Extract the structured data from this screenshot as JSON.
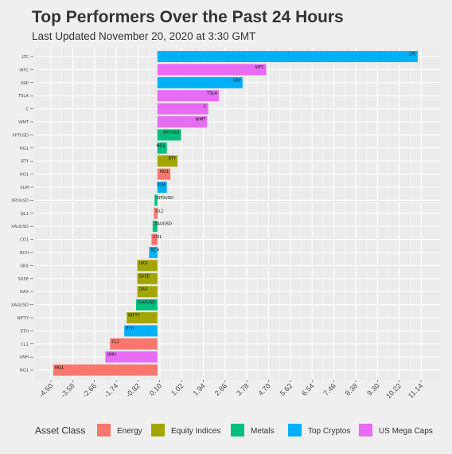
{
  "chart_data": {
    "type": "bar",
    "orientation": "horizontal",
    "title": "Top Performers Over the Past 24 Hours",
    "subtitle": "Last Updated November 20, 2020 at 3:30 GMT",
    "xlabel": "",
    "ylabel": "",
    "xlim": [
      -4.5,
      11.14
    ],
    "grid": true,
    "legend_position": "bottom",
    "x_ticks": [
      "-4.50",
      "-3.58",
      "-2.66",
      "-1.74",
      "-0.82",
      "0.10",
      "1.02",
      "1.94",
      "2.86",
      "3.78",
      "4.70",
      "5.62",
      "6.54",
      "7.46",
      "8.38",
      "9.30",
      "10.22",
      "11.14"
    ],
    "legend": {
      "title": "Asset Class",
      "entries": [
        {
          "name": "Energy",
          "color": "#f8766d"
        },
        {
          "name": "Equity Indices",
          "color": "#a3a500"
        },
        {
          "name": "Metals",
          "color": "#00bf7d"
        },
        {
          "name": "Top Cryptos",
          "color": "#00b0f6"
        },
        {
          "name": "US Mega Caps",
          "color": "#e76bf3"
        }
      ]
    },
    "bars": [
      {
        "label": "LTC",
        "value": 11.0,
        "class": "Top Cryptos"
      },
      {
        "label": "WFC",
        "value": 4.6,
        "class": "US Mega Caps"
      },
      {
        "label": "XRP",
        "value": 3.6,
        "class": "Top Cryptos"
      },
      {
        "label": "TSLA",
        "value": 2.6,
        "class": "US Mega Caps"
      },
      {
        "label": "C",
        "value": 2.15,
        "class": "US Mega Caps"
      },
      {
        "label": "WMT",
        "value": 2.1,
        "class": "US Mega Caps"
      },
      {
        "label": "XPTUSD",
        "value": 1.0,
        "class": "Metals"
      },
      {
        "label": "HG1",
        "value": 0.4,
        "class": "Metals"
      },
      {
        "label": "RTY",
        "value": 0.85,
        "class": "Equity Indices"
      },
      {
        "label": "HO1",
        "value": 0.55,
        "class": "Energy"
      },
      {
        "label": "XLM",
        "value": 0.4,
        "class": "Top Cryptos"
      },
      {
        "label": "XPDUSD",
        "value": -0.12,
        "class": "Metals"
      },
      {
        "label": "QL1",
        "value": -0.15,
        "class": "Energy"
      },
      {
        "label": "XAUUSD",
        "value": -0.2,
        "class": "Metals"
      },
      {
        "label": "CO1",
        "value": -0.25,
        "class": "Energy"
      },
      {
        "label": "BCH",
        "value": -0.35,
        "class": "Top Cryptos"
      },
      {
        "label": "UKX",
        "value": -0.85,
        "class": "Equity Indices"
      },
      {
        "label": "SX5E",
        "value": -0.85,
        "class": "Equity Indices"
      },
      {
        "label": "DAX",
        "value": -0.85,
        "class": "Equity Indices"
      },
      {
        "label": "XAGUSD",
        "value": -0.9,
        "class": "Metals"
      },
      {
        "label": "NIFTY",
        "value": -1.3,
        "class": "Equity Indices"
      },
      {
        "label": "ETH",
        "value": -1.4,
        "class": "Top Cryptos"
      },
      {
        "label": "CL1",
        "value": -2.0,
        "class": "Energy"
      },
      {
        "label": "UNH",
        "value": -2.2,
        "class": "US Mega Caps"
      },
      {
        "label": "NG1",
        "value": -4.4,
        "class": "Energy"
      }
    ]
  }
}
